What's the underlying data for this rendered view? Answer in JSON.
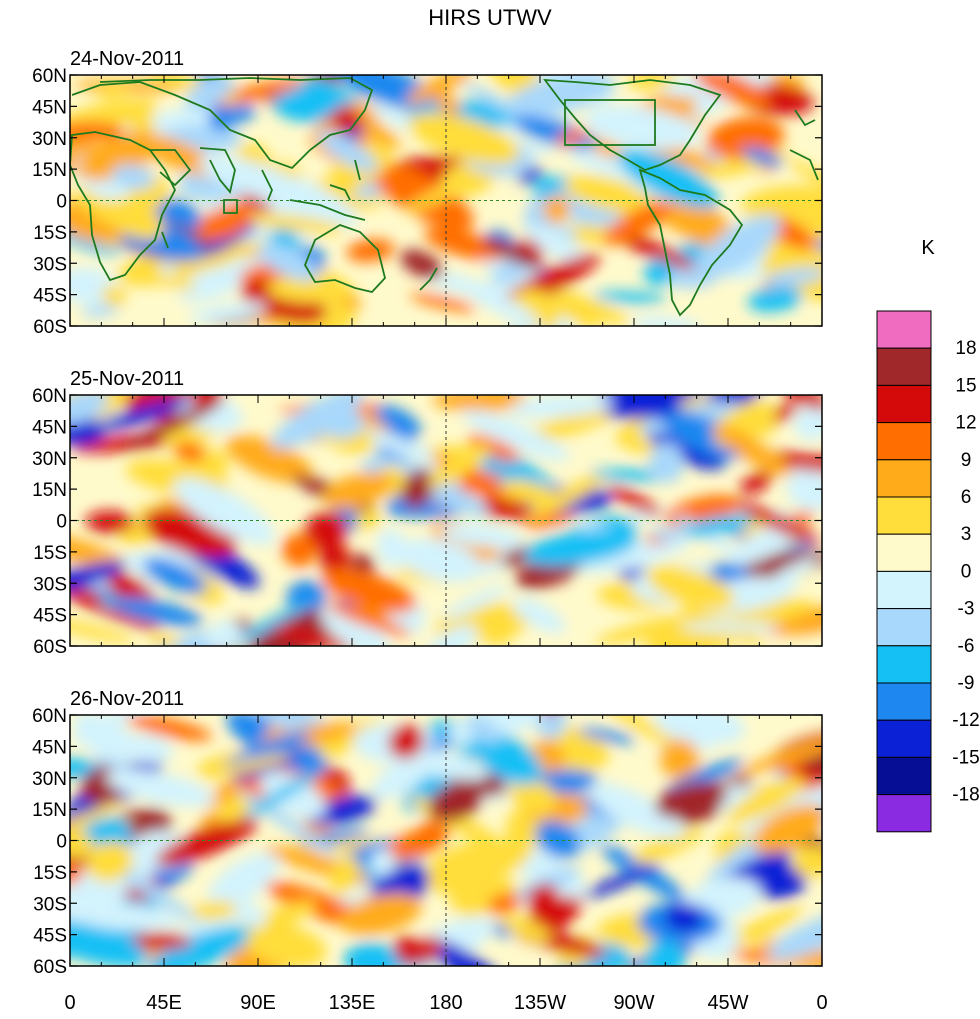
{
  "chart_data": {
    "type": "heatmap",
    "title": "HIRS UTWV",
    "units": "K",
    "panels": [
      {
        "date": "24-Nov-2011"
      },
      {
        "date": "25-Nov-2011"
      },
      {
        "date": "26-Nov-2011"
      }
    ],
    "lat_ticks": [
      "60N",
      "45N",
      "30N",
      "15N",
      "0",
      "15S",
      "30S",
      "45S",
      "60S"
    ],
    "lat_values": [
      60,
      45,
      30,
      15,
      0,
      -15,
      -30,
      -45,
      -60
    ],
    "lon_ticks": [
      "0",
      "45E",
      "90E",
      "135E",
      "180",
      "135W",
      "90W",
      "45W",
      "0"
    ],
    "lon_values": [
      0,
      45,
      90,
      135,
      180,
      225,
      270,
      315,
      360
    ],
    "xlim": [
      0,
      360
    ],
    "ylim": [
      -60,
      60
    ],
    "colorbar": {
      "labels": [
        "18",
        "15",
        "12",
        "9",
        "6",
        "3",
        "0",
        "-3",
        "-6",
        "-9",
        "-12",
        "-15",
        "-18"
      ],
      "colors": [
        "#f06cc0",
        "#a0282a",
        "#d40a0a",
        "#ff6e00",
        "#ffab1a",
        "#ffdd3b",
        "#fffacc",
        "#d3f3fd",
        "#a8d8fb",
        "#15c0f5",
        "#1e88f0",
        "#0a21d6",
        "#060e96",
        "#8a2be2"
      ]
    }
  }
}
